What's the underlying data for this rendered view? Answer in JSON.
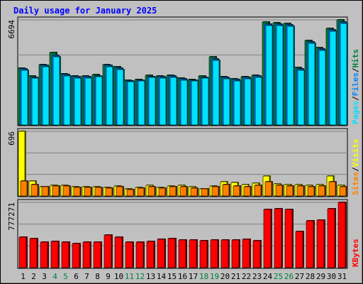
{
  "chart_data": {
    "type": "bar",
    "title": "Daily usage for January 2025",
    "categories": [
      "1",
      "2",
      "3",
      "4",
      "5",
      "6",
      "7",
      "8",
      "9",
      "10",
      "11",
      "12",
      "13",
      "14",
      "15",
      "16",
      "17",
      "18",
      "19",
      "20",
      "21",
      "22",
      "23",
      "24",
      "25",
      "26",
      "27",
      "28",
      "29",
      "30",
      "31"
    ],
    "weekend_days": [
      "4",
      "5",
      "11",
      "12",
      "18",
      "19",
      "25",
      "26"
    ],
    "panels": [
      {
        "id": "hits",
        "max_label": "6694",
        "ymax": 6694,
        "ylabel_parts": [
          "Pages",
          "Files",
          "Hits"
        ],
        "series": [
          {
            "name": "Hits",
            "color": "#008040",
            "values": [
              3610,
              3100,
              3840,
              4600,
              3270,
              3120,
              3130,
              3210,
              3860,
              3690,
              2870,
              2910,
              3150,
              3130,
              3170,
              2980,
              2910,
              3100,
              4330,
              3080,
              2940,
              3080,
              3180,
              6560,
              6520,
              6450,
              3650,
              5390,
              4930,
              6150,
              6694
            ]
          },
          {
            "name": "Files",
            "color": "#0080ff",
            "values": [
              3560,
              3050,
              3780,
              4440,
              3210,
              3060,
              3060,
              3140,
              3790,
              3620,
              2810,
              2860,
              3090,
              3070,
              3100,
              2920,
              2860,
              3040,
              4210,
              3010,
              2890,
              3020,
              3120,
              6440,
              6420,
              6360,
              3570,
              5270,
              4850,
              6050,
              6560
            ]
          },
          {
            "name": "Pages",
            "color": "#00e0ff",
            "values": [
              3480,
              2980,
              3690,
              4350,
              3140,
              2990,
              2990,
              3060,
              3700,
              3530,
              2750,
              2790,
              3020,
              2990,
              3030,
              2850,
              2790,
              2970,
              4110,
              2940,
              2820,
              2950,
              3050,
              6340,
              6320,
              6280,
              3490,
              5180,
              4760,
              5950,
              6450
            ]
          }
        ]
      },
      {
        "id": "visits",
        "max_label": "696",
        "ymax": 696,
        "ylabel_parts": [
          "Sites",
          "Visits"
        ],
        "series": [
          {
            "name": "Visits",
            "color": "#ffff00",
            "values": [
              696,
              158,
              98,
              117,
              118,
              97,
              96,
              103,
              93,
              109,
              77,
              95,
              113,
              90,
              107,
              116,
              96,
              80,
              106,
              150,
              146,
              124,
              140,
              216,
              131,
              126,
              125,
              117,
              123,
              212,
              115
            ]
          },
          {
            "name": "Sites",
            "color": "#ff8000",
            "values": [
              160,
              125,
              96,
              105,
              105,
              88,
              90,
              93,
              83,
              97,
              70,
              83,
              100,
              84,
              96,
              102,
              87,
              73,
              97,
              119,
              110,
              102,
              113,
              152,
              113,
              110,
              108,
              98,
              110,
              152,
              98
            ]
          }
        ]
      },
      {
        "id": "kbytes",
        "max_label": "777271",
        "ymax": 777271,
        "ylabel_parts": [
          "KBytes"
        ],
        "series": [
          {
            "name": "KBytes",
            "color": "#ff0000",
            "values": [
              360000,
              350000,
              300000,
              310000,
              300000,
              290000,
              300000,
              300000,
              390000,
              360000,
              300000,
              300000,
              310000,
              340000,
              350000,
              330000,
              330000,
              320000,
              330000,
              330000,
              330000,
              340000,
              320000,
              690000,
              700000,
              690000,
              430000,
              560000,
              570000,
              700000,
              777271
            ]
          }
        ]
      }
    ]
  }
}
